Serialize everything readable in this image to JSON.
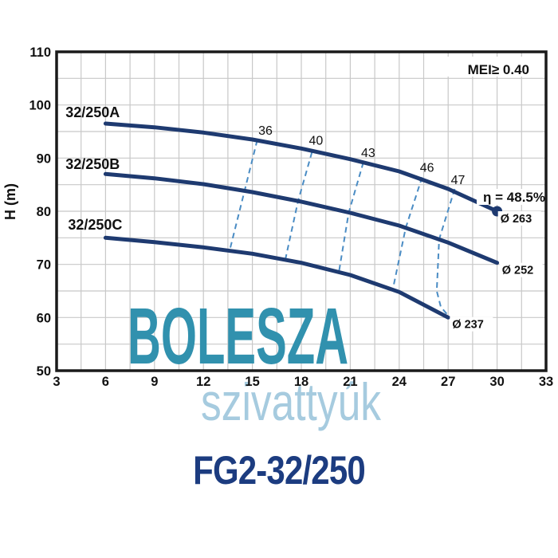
{
  "page": {
    "title": "FG2-32/250",
    "watermark_line1": "BOLESZA",
    "watermark_line2": "szivattyúk"
  },
  "chart_data": {
    "type": "line",
    "title": "",
    "xlabel": "",
    "ylabel": "H (m)",
    "xlim": [
      3,
      33
    ],
    "ylim": [
      50,
      110
    ],
    "x_ticks": [
      3,
      6,
      9,
      12,
      15,
      18,
      21,
      24,
      27,
      30,
      33
    ],
    "y_ticks": [
      50,
      60,
      70,
      80,
      90,
      100,
      110
    ],
    "x_grid_step": 1.5,
    "y_grid_step": 5,
    "grid": true,
    "legend_position": "none",
    "mei_label": "MEI≥ 0.40",
    "efficiency_point_label": "η = 48.5%",
    "efficiency_point": [
      30,
      80
    ],
    "series": [
      {
        "name": "32/250A",
        "diameter_label": "Ø 263",
        "end_marker": true,
        "points": [
          [
            6,
            96.5
          ],
          [
            9,
            95.8
          ],
          [
            12,
            94.8
          ],
          [
            15,
            93.5
          ],
          [
            18,
            91.8
          ],
          [
            21,
            89.8
          ],
          [
            24,
            87.5
          ],
          [
            27,
            84.2
          ],
          [
            30,
            80
          ]
        ],
        "name_pos": [
          3.55,
          97.7
        ],
        "diameter_label_pos": [
          30.2,
          77.9
        ]
      },
      {
        "name": "32/250B",
        "diameter_label": "Ø 252",
        "end_marker": false,
        "points": [
          [
            6,
            87
          ],
          [
            9,
            86.2
          ],
          [
            12,
            85.1
          ],
          [
            15,
            83.6
          ],
          [
            18,
            81.8
          ],
          [
            21,
            79.7
          ],
          [
            24,
            77.3
          ],
          [
            27,
            74.1
          ],
          [
            30,
            70.3
          ]
        ],
        "name_pos": [
          3.55,
          87.95
        ],
        "diameter_label_pos": [
          30.3,
          68.2
        ]
      },
      {
        "name": "32/250C",
        "diameter_label": "Ø 237",
        "end_marker": false,
        "points": [
          [
            6,
            75
          ],
          [
            9,
            74.2
          ],
          [
            12,
            73.2
          ],
          [
            15,
            72
          ],
          [
            18,
            70.3
          ],
          [
            21,
            68
          ],
          [
            24,
            64.8
          ],
          [
            27,
            60
          ]
        ],
        "name_pos": [
          3.7,
          76.55
        ],
        "diameter_label_pos": [
          27.25,
          58.0
        ]
      }
    ],
    "iso_efficiency_lines": [
      {
        "label": "36",
        "label_pos": [
          15.8,
          94.4
        ],
        "points": [
          [
            15.3,
            93.4
          ],
          [
            14.5,
            83.6
          ],
          [
            13.6,
            72.5
          ]
        ]
      },
      {
        "label": "40",
        "label_pos": [
          18.9,
          92.5
        ],
        "points": [
          [
            18.65,
            91.1
          ],
          [
            17.8,
            81.9
          ],
          [
            17.0,
            70.6
          ]
        ]
      },
      {
        "label": "43",
        "label_pos": [
          22.1,
          90.2
        ],
        "points": [
          [
            21.8,
            89.2
          ],
          [
            20.9,
            79.7
          ],
          [
            20.3,
            68.5
          ]
        ]
      },
      {
        "label": "46",
        "label_pos": [
          25.7,
          87.4
        ],
        "points": [
          [
            25.4,
            86.4
          ],
          [
            24.4,
            76.9
          ],
          [
            23.6,
            65.2
          ]
        ]
      },
      {
        "label": "47",
        "label_pos": [
          27.6,
          85.1
        ],
        "points": [
          [
            27.4,
            84.2
          ],
          [
            26.45,
            74.7
          ],
          [
            26.3,
            65.0
          ],
          [
            26.55,
            62.0
          ],
          [
            27.05,
            60.2
          ]
        ]
      }
    ],
    "colors": {
      "curve": "#1e3a70",
      "iso_line": "#4a8cc4",
      "grid": "#c8c8c8",
      "frame": "#1a1a1a",
      "text": "#111111",
      "title": "#1c3c80",
      "watermark_primary": "#3191ae",
      "watermark_secondary": "#a6cbdf"
    }
  }
}
